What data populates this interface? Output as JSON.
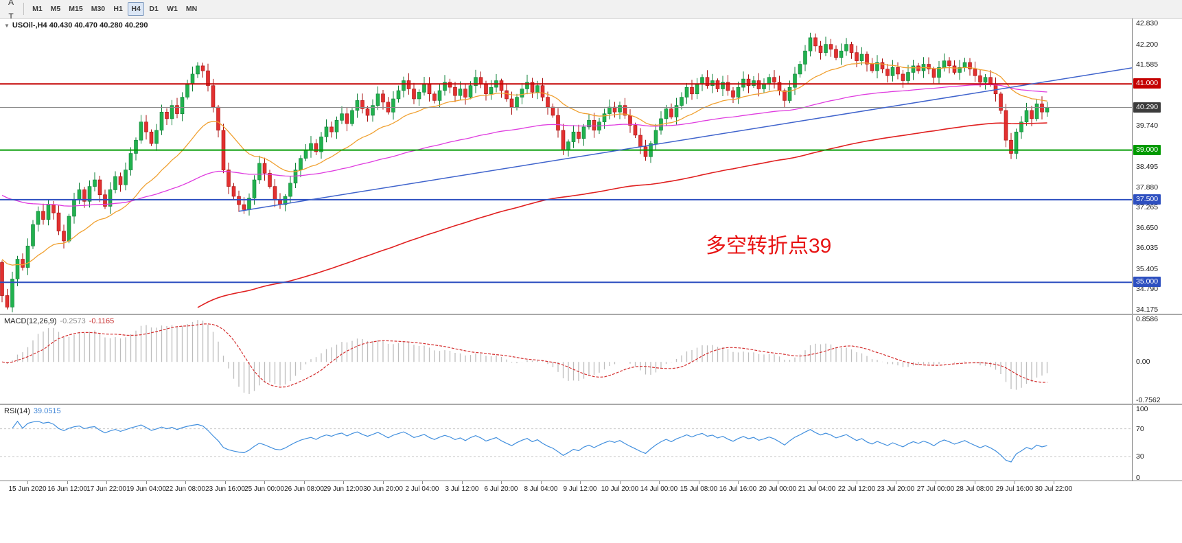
{
  "toolbar": {
    "left_icons": [
      {
        "name": "chart-windows-icon",
        "glyph": "❏"
      },
      {
        "name": "cursor-a-icon",
        "glyph": "A"
      },
      {
        "name": "text-tool-icon",
        "glyph": "T"
      },
      {
        "name": "polyline-tool-icon",
        "glyph": "∿",
        "caret": "▾"
      }
    ],
    "timeframes": [
      "M1",
      "M5",
      "M15",
      "M30",
      "H1",
      "H4",
      "D1",
      "W1",
      "MN"
    ],
    "active_timeframe": "H4"
  },
  "main_chart": {
    "collapse_glyph": "▼",
    "title": "USOil-,H4 40.430 40.470 40.280 40.290",
    "annotation": "多空转折点39",
    "annotation_color": "#e81414"
  },
  "chart_data": {
    "type": "candlestick",
    "symbol": "USOil-",
    "timeframe": "H4",
    "ohlc": {
      "open": "40.430",
      "high": "40.470",
      "low": "40.280",
      "close": "40.290"
    },
    "price_axis": {
      "min": 34.05,
      "max": 42.98,
      "labels": [
        "42.830",
        "42.200",
        "41.585",
        "39.740",
        "38.495",
        "37.880",
        "37.265",
        "36.650",
        "36.035",
        "35.405",
        "34.790",
        "34.175"
      ],
      "badges": [
        {
          "text": "41.000",
          "bg": "#c40000"
        },
        {
          "text": "40.290",
          "bg": "#3c3c3c"
        },
        {
          "text": "39.000",
          "bg": "#009a00"
        },
        {
          "text": "37.500",
          "bg": "#2d4fc0"
        },
        {
          "text": "35.000",
          "bg": "#2d4fc0"
        }
      ]
    },
    "time_axis": [
      "15 Jun 2020",
      "16 Jun 12:00",
      "17 Jun 22:00",
      "19 Jun 04:00",
      "22 Jun 08:00",
      "23 Jun 16:00",
      "25 Jun 00:00",
      "26 Jun 08:00",
      "29 Jun 12:00",
      "30 Jun 20:00",
      "2 Jul 04:00",
      "3 Jul 12:00",
      "6 Jul 20:00",
      "8 Jul 04:00",
      "9 Jul 12:00",
      "10 Jul 20:00",
      "14 Jul 00:00",
      "15 Jul 08:00",
      "16 Jul 16:00",
      "20 Jul 00:00",
      "21 Jul 04:00",
      "22 Jul 12:00",
      "23 Jul 20:00",
      "27 Jul 00:00",
      "28 Jul 08:00",
      "29 Jul 16:00",
      "30 Jul 22:00"
    ],
    "candles": {
      "first_open": 35.6,
      "up_color": "#21b14e",
      "up_border": "#0f8038",
      "down_color": "#e23030",
      "down_border": "#a81111",
      "closes": [
        34.6,
        34.25,
        35.1,
        35.7,
        35.45,
        36.1,
        36.75,
        37.15,
        36.9,
        37.35,
        37.1,
        36.55,
        36.25,
        37.0,
        37.5,
        37.8,
        37.45,
        37.9,
        38.1,
        37.65,
        37.3,
        37.8,
        38.2,
        37.95,
        38.4,
        38.9,
        39.3,
        39.85,
        39.55,
        39.2,
        39.6,
        40.15,
        39.95,
        40.35,
        40.1,
        40.6,
        41.0,
        41.3,
        41.55,
        41.4,
        40.95,
        40.3,
        39.6,
        38.4,
        37.9,
        37.6,
        37.35,
        37.2,
        37.55,
        38.1,
        38.6,
        38.3,
        37.9,
        37.5,
        37.35,
        37.6,
        38.0,
        38.4,
        38.75,
        39.0,
        39.2,
        38.95,
        39.4,
        39.7,
        39.55,
        39.9,
        40.1,
        39.8,
        40.2,
        40.5,
        40.25,
        40.05,
        40.35,
        40.7,
        40.45,
        40.15,
        40.55,
        40.8,
        41.1,
        40.85,
        40.55,
        40.75,
        41.0,
        40.7,
        40.5,
        40.8,
        41.05,
        40.9,
        40.65,
        40.85,
        40.6,
        40.95,
        41.2,
        41.0,
        40.7,
        40.9,
        41.1,
        40.8,
        40.55,
        40.3,
        40.6,
        40.85,
        41.05,
        40.75,
        40.95,
        40.6,
        40.3,
        40.05,
        39.6,
        39.0,
        39.25,
        39.55,
        39.35,
        39.7,
        39.9,
        39.6,
        39.85,
        40.1,
        40.3,
        40.15,
        40.35,
        40.05,
        39.75,
        39.45,
        39.1,
        38.8,
        39.2,
        39.6,
        39.95,
        40.25,
        40.0,
        40.35,
        40.6,
        40.9,
        40.7,
        41.0,
        41.2,
        40.95,
        41.1,
        40.85,
        41.05,
        40.8,
        40.6,
        40.9,
        41.15,
        40.95,
        41.1,
        40.85,
        41.0,
        41.2,
        41.05,
        40.8,
        40.5,
        40.9,
        41.3,
        41.6,
        42.0,
        42.4,
        42.15,
        41.95,
        42.2,
        42.05,
        41.8,
        42.0,
        42.2,
        41.95,
        41.7,
        41.9,
        41.6,
        41.4,
        41.65,
        41.45,
        41.25,
        41.5,
        41.3,
        41.1,
        41.35,
        41.55,
        41.4,
        41.6,
        41.45,
        41.2,
        41.5,
        41.7,
        41.55,
        41.35,
        41.5,
        41.65,
        41.45,
        41.25,
        41.05,
        41.2,
        41.0,
        40.7,
        40.2,
        39.3,
        38.9,
        39.55,
        39.85,
        40.2,
        39.95,
        40.4,
        40.15,
        40.29
      ],
      "wick_overrides": {
        "1": {
          "l": 34.18
        },
        "38": {
          "h": 41.66
        },
        "47": {
          "l": 37.07
        },
        "109": {
          "l": 38.85
        },
        "125": {
          "l": 38.68
        },
        "157": {
          "h": 42.55
        },
        "196": {
          "l": 38.73
        }
      }
    },
    "overlays": {
      "horizontal_lines": [
        {
          "price": 41.0,
          "color": "#c40000",
          "width": 2
        },
        {
          "price": 39.0,
          "color": "#009a00",
          "width": 2
        },
        {
          "price": 37.5,
          "color": "#2d4fc0",
          "width": 2
        },
        {
          "price": 35.0,
          "color": "#2d4fc0",
          "width": 2
        },
        {
          "price": 40.29,
          "color": "#8a8a8a",
          "width": 1
        }
      ],
      "moving_averages": [
        {
          "name": "ma-fast-orange",
          "color": "#f0a030",
          "alpha": 0.09,
          "start": 35.8,
          "from": 0,
          "width": 1.3
        },
        {
          "name": "ma-medium-magenta",
          "color": "#df3cdf",
          "alpha": 0.022,
          "start": 37.7,
          "from": 0,
          "width": 1.3
        },
        {
          "name": "ma-slow-red",
          "color": "#e02020",
          "alpha": 0.012,
          "start": 34.15,
          "from": 38,
          "width": 1.6
        }
      ],
      "trendline": {
        "from_index": 46,
        "from_price": 37.15,
        "to_index": 204,
        "to_price": 41.1,
        "color": "#3f63cc",
        "width": 1.5
      }
    },
    "macd": {
      "label": "MACD(12,26,9)",
      "value_main": "-0.2573",
      "value_signal": "-0.1165",
      "axis_labels": [
        "0.8586",
        "0.00",
        "-0.7562"
      ],
      "range": [
        -0.82,
        0.92
      ],
      "histogram_color": "#bdbdbd",
      "signal_color": "#d43030"
    },
    "rsi": {
      "label": "RSI(14)",
      "value": "39.0515",
      "axis_labels": [
        "100",
        "70",
        "30",
        "0"
      ],
      "levels": [
        70,
        30
      ],
      "range": [
        0,
        100
      ],
      "line_color": "#418fde",
      "level_color": "#c4c4c4"
    }
  }
}
